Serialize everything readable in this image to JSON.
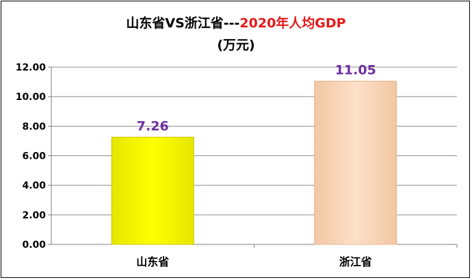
{
  "chart_data": {
    "type": "bar",
    "title_part1": "山东省VS浙江省---",
    "title_part2": "2020年人均GDP",
    "subtitle": "(万元)",
    "categories": [
      "山东省",
      "浙江省"
    ],
    "values": [
      7.26,
      11.05
    ],
    "data_labels": [
      "7.26",
      "11.05"
    ],
    "ylim": [
      0,
      12
    ],
    "yticks": [
      "0.00",
      "2.00",
      "4.00",
      "6.00",
      "8.00",
      "10.00",
      "12.00"
    ],
    "grid": true,
    "legend": "none",
    "colors": {
      "bar_1": "#ffff00",
      "bar_2": "#fcd5b5",
      "data_label": "#7030a0",
      "title_highlight": "#e41a1a",
      "gridline": "#8c8c8c"
    }
  }
}
